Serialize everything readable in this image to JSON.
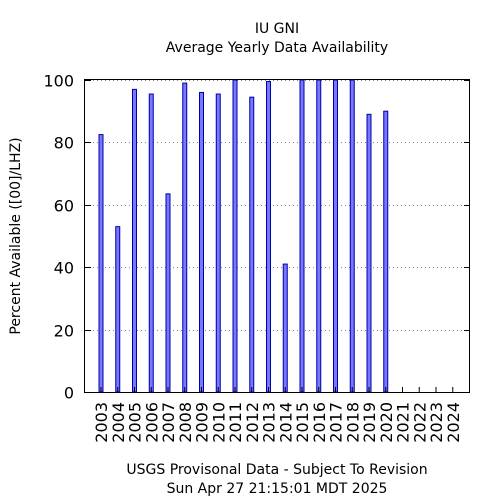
{
  "chart_data": {
    "type": "bar",
    "title": "IU GNI",
    "subtitle": "Average Yearly Data Availability",
    "ylabel": "Percent Available ([00]/LHZ)",
    "xlabel": "USGS Provisonal Data - Subject To Revision",
    "footer": "Sun Apr 27 21:15:01 MDT 2025",
    "ylim": [
      0,
      100
    ],
    "yticks": [
      0,
      20,
      40,
      60,
      80,
      100
    ],
    "grid": true,
    "bar_color": "#7777ff",
    "bar_edge_color": "#0000aa",
    "categories": [
      "2003",
      "2004",
      "2005",
      "2006",
      "2007",
      "2008",
      "2009",
      "2010",
      "2011",
      "2012",
      "2013",
      "2014",
      "2015",
      "2016",
      "2017",
      "2018",
      "2019",
      "2020",
      "2021",
      "2022",
      "2023",
      "2024"
    ],
    "values": [
      82.5,
      53,
      97,
      95.5,
      63.5,
      99,
      96,
      95.5,
      100,
      94.5,
      99.5,
      41,
      100,
      100,
      100,
      100,
      89,
      90,
      null,
      null,
      null,
      null
    ]
  }
}
